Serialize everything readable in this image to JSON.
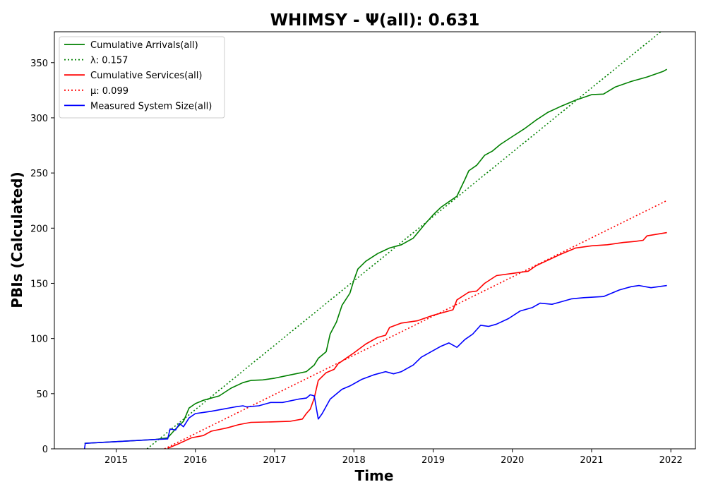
{
  "chart_data": {
    "type": "line",
    "title": "WHIMSY -  Ψ(all): 0.631",
    "xlabel": "Time",
    "ylabel": "PBIs (Calculated)",
    "xlim": [
      2014.22,
      2022.31
    ],
    "ylim": [
      0,
      378
    ],
    "x_ticks": [
      "2015",
      "2016",
      "2017",
      "2018",
      "2019",
      "2020",
      "2021",
      "2022"
    ],
    "y_ticks": [
      "0",
      "50",
      "100",
      "150",
      "200",
      "250",
      "300",
      "350"
    ],
    "legend_position": "upper left",
    "grid": false,
    "series": [
      {
        "name": "Cumulative Arrivals(all)",
        "color": "#008000",
        "style": "solid",
        "points": [
          [
            2014.6,
            5
          ],
          [
            2015.0,
            6.5
          ],
          [
            2015.5,
            8.5
          ],
          [
            2015.65,
            10
          ],
          [
            2015.75,
            18
          ],
          [
            2015.85,
            25
          ],
          [
            2015.92,
            37
          ],
          [
            2016.0,
            41
          ],
          [
            2016.1,
            44
          ],
          [
            2016.3,
            48
          ],
          [
            2016.45,
            55
          ],
          [
            2016.6,
            60
          ],
          [
            2016.7,
            62
          ],
          [
            2016.85,
            62.5
          ],
          [
            2017.0,
            64
          ],
          [
            2017.2,
            67
          ],
          [
            2017.4,
            70
          ],
          [
            2017.5,
            76
          ],
          [
            2017.55,
            82
          ],
          [
            2017.65,
            88
          ],
          [
            2017.7,
            104
          ],
          [
            2017.78,
            115
          ],
          [
            2017.85,
            130
          ],
          [
            2017.95,
            141
          ],
          [
            2018.0,
            153
          ],
          [
            2018.05,
            163
          ],
          [
            2018.15,
            170
          ],
          [
            2018.3,
            177
          ],
          [
            2018.45,
            182
          ],
          [
            2018.6,
            185
          ],
          [
            2018.75,
            191
          ],
          [
            2018.9,
            204
          ],
          [
            2019.0,
            212
          ],
          [
            2019.1,
            219
          ],
          [
            2019.2,
            224
          ],
          [
            2019.3,
            229
          ],
          [
            2019.4,
            244
          ],
          [
            2019.45,
            252
          ],
          [
            2019.55,
            257
          ],
          [
            2019.65,
            266
          ],
          [
            2019.75,
            270
          ],
          [
            2019.85,
            276
          ],
          [
            2020.0,
            283
          ],
          [
            2020.15,
            290
          ],
          [
            2020.3,
            298
          ],
          [
            2020.45,
            305
          ],
          [
            2020.6,
            310
          ],
          [
            2020.8,
            316
          ],
          [
            2021.0,
            321
          ],
          [
            2021.15,
            321.5
          ],
          [
            2021.3,
            328
          ],
          [
            2021.5,
            333
          ],
          [
            2021.7,
            337
          ],
          [
            2021.9,
            342
          ],
          [
            2021.95,
            344
          ]
        ]
      },
      {
        "name": "λ: 0.157",
        "color": "#008000",
        "style": "dotted",
        "points": [
          [
            2015.39,
            0
          ],
          [
            2021.89,
            379
          ]
        ]
      },
      {
        "name": "Cumulative Services(all)",
        "color": "#ff0000",
        "style": "solid",
        "points": [
          [
            2015.65,
            0.5
          ],
          [
            2015.8,
            5
          ],
          [
            2015.95,
            10
          ],
          [
            2016.1,
            12
          ],
          [
            2016.2,
            16
          ],
          [
            2016.4,
            19
          ],
          [
            2016.55,
            22
          ],
          [
            2016.7,
            24
          ],
          [
            2017.0,
            24.5
          ],
          [
            2017.2,
            25
          ],
          [
            2017.35,
            27
          ],
          [
            2017.4,
            32
          ],
          [
            2017.45,
            36
          ],
          [
            2017.5,
            46
          ],
          [
            2017.55,
            62
          ],
          [
            2017.65,
            69
          ],
          [
            2017.75,
            72
          ],
          [
            2017.8,
            77
          ],
          [
            2017.9,
            82
          ],
          [
            2018.0,
            87
          ],
          [
            2018.15,
            95
          ],
          [
            2018.3,
            101
          ],
          [
            2018.4,
            103
          ],
          [
            2018.45,
            110
          ],
          [
            2018.6,
            114
          ],
          [
            2018.8,
            116
          ],
          [
            2019.0,
            121
          ],
          [
            2019.15,
            124
          ],
          [
            2019.25,
            126
          ],
          [
            2019.3,
            135
          ],
          [
            2019.45,
            142
          ],
          [
            2019.55,
            143
          ],
          [
            2019.65,
            150
          ],
          [
            2019.8,
            157
          ],
          [
            2020.0,
            159
          ],
          [
            2020.2,
            161
          ],
          [
            2020.3,
            166
          ],
          [
            2020.45,
            171
          ],
          [
            2020.6,
            176
          ],
          [
            2020.8,
            182
          ],
          [
            2021.0,
            184
          ],
          [
            2021.2,
            185
          ],
          [
            2021.4,
            187
          ],
          [
            2021.55,
            188
          ],
          [
            2021.65,
            189
          ],
          [
            2021.7,
            193
          ],
          [
            2021.95,
            196
          ]
        ]
      },
      {
        "name": "μ: 0.099",
        "color": "#ff0000",
        "style": "dotted",
        "points": [
          [
            2015.61,
            0
          ],
          [
            2021.95,
            225
          ]
        ]
      },
      {
        "name": "Measured System Size(all)",
        "color": "#0000ff",
        "style": "solid",
        "points": [
          [
            2014.6,
            0
          ],
          [
            2014.61,
            5
          ],
          [
            2015.0,
            6.5
          ],
          [
            2015.5,
            8.5
          ],
          [
            2015.65,
            9
          ],
          [
            2015.68,
            18
          ],
          [
            2015.75,
            17
          ],
          [
            2015.8,
            23
          ],
          [
            2015.85,
            20
          ],
          [
            2015.92,
            28
          ],
          [
            2016.0,
            32
          ],
          [
            2016.1,
            33
          ],
          [
            2016.2,
            34
          ],
          [
            2016.35,
            36
          ],
          [
            2016.5,
            38
          ],
          [
            2016.6,
            39
          ],
          [
            2016.65,
            38
          ],
          [
            2016.8,
            39
          ],
          [
            2016.95,
            42
          ],
          [
            2017.1,
            42
          ],
          [
            2017.3,
            45
          ],
          [
            2017.4,
            46
          ],
          [
            2017.45,
            49
          ],
          [
            2017.5,
            48
          ],
          [
            2017.55,
            27
          ],
          [
            2017.6,
            32
          ],
          [
            2017.7,
            45
          ],
          [
            2017.85,
            54
          ],
          [
            2017.95,
            57
          ],
          [
            2018.1,
            63
          ],
          [
            2018.25,
            67
          ],
          [
            2018.4,
            70
          ],
          [
            2018.5,
            68
          ],
          [
            2018.6,
            70
          ],
          [
            2018.75,
            76
          ],
          [
            2018.85,
            83
          ],
          [
            2019.0,
            89
          ],
          [
            2019.1,
            93
          ],
          [
            2019.2,
            96
          ],
          [
            2019.3,
            92
          ],
          [
            2019.4,
            99
          ],
          [
            2019.5,
            104
          ],
          [
            2019.6,
            112
          ],
          [
            2019.7,
            111
          ],
          [
            2019.8,
            113
          ],
          [
            2019.95,
            118
          ],
          [
            2020.1,
            125
          ],
          [
            2020.25,
            128
          ],
          [
            2020.35,
            132
          ],
          [
            2020.5,
            131
          ],
          [
            2020.6,
            133
          ],
          [
            2020.75,
            136
          ],
          [
            2020.9,
            137
          ],
          [
            2021.15,
            138
          ],
          [
            2021.35,
            144
          ],
          [
            2021.5,
            147
          ],
          [
            2021.6,
            148
          ],
          [
            2021.75,
            146
          ],
          [
            2021.95,
            148
          ]
        ]
      }
    ]
  }
}
